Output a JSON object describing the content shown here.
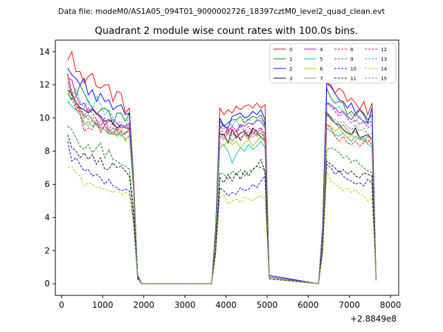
{
  "figure": {
    "suptitle": "Data file: modeM0/AS1A05_094T01_9000002726_18397cztM0_level2_quad_clean.evt"
  },
  "chart_data": {
    "type": "line",
    "title": "Quadrant 2 module wise count rates with 100.0s bins.",
    "xlabel": "",
    "ylabel": "",
    "x_offset_label": "+2.8849e8",
    "xlim": [
      -150,
      8200
    ],
    "ylim": [
      -0.7,
      14.7
    ],
    "x_ticks": [
      0,
      1000,
      2000,
      3000,
      4000,
      5000,
      6000,
      7000,
      8000
    ],
    "y_ticks": [
      0,
      2,
      4,
      6,
      8,
      10,
      12,
      14
    ],
    "x": [
      150,
      250,
      350,
      450,
      550,
      650,
      750,
      850,
      950,
      1050,
      1150,
      1250,
      1350,
      1450,
      1550,
      1650,
      1750,
      1850,
      1950,
      3650,
      3750,
      3850,
      3950,
      4050,
      4150,
      4250,
      4350,
      4450,
      4550,
      4650,
      4750,
      4850,
      4950,
      5050,
      6250,
      6350,
      6450,
      6550,
      6650,
      6750,
      6850,
      6950,
      7050,
      7150,
      7250,
      7350,
      7450,
      7550,
      7650
    ],
    "gap_after_index": [
      18,
      33
    ],
    "gap_zero_value": 0,
    "legend": {
      "location": "top-right",
      "columns": 4
    },
    "series": [
      {
        "name": "0",
        "color": "#ff0000",
        "dash": "solid",
        "values": [
          13.5,
          14.0,
          12.8,
          12.8,
          12.1,
          12.5,
          12.7,
          11.9,
          11.8,
          12.0,
          12.0,
          11.0,
          11.6,
          11.5,
          10.3,
          10.6,
          6.5,
          0.5,
          0,
          0,
          3.5,
          10.6,
          10.2,
          10.5,
          10.3,
          10.7,
          10.5,
          10.7,
          10.8,
          10.6,
          10.9,
          10.6,
          10.8,
          0.5,
          0,
          3.5,
          12.1,
          12.0,
          11.5,
          11.8,
          11.6,
          11.0,
          11.2,
          10.9,
          10.5,
          11.0,
          10.2,
          10.9,
          0.2
        ]
      },
      {
        "name": "1",
        "color": "#008000",
        "dash": "solid",
        "values": [
          11.5,
          11.1,
          11.3,
          12.0,
          11.5,
          11.0,
          10.6,
          10.2,
          10.5,
          10.6,
          10.4,
          9.6,
          10.3,
          10.3,
          9.8,
          10.3,
          6.0,
          0.5,
          0,
          0,
          3.3,
          9.8,
          9.5,
          9.7,
          9.9,
          9.9,
          10.1,
          9.7,
          9.9,
          10.1,
          10.0,
          10.2,
          9.6,
          0.4,
          0,
          3.3,
          11.8,
          11.2,
          10.9,
          11.0,
          10.9,
          10.2,
          10.4,
          10.1,
          10.5,
          10.3,
          9.9,
          10.2,
          0.2
        ]
      },
      {
        "name": "2",
        "color": "#0000ff",
        "dash": "solid",
        "values": [
          13.0,
          12.6,
          12.4,
          12.0,
          12.4,
          11.4,
          11.7,
          11.0,
          11.5,
          11.0,
          11.1,
          10.5,
          10.7,
          10.8,
          10.2,
          10.3,
          6.2,
          0.5,
          0,
          0,
          3.4,
          10.0,
          9.5,
          9.4,
          10.1,
          10.2,
          10.3,
          10.0,
          10.1,
          10.4,
          10.2,
          10.5,
          9.9,
          0.5,
          0,
          3.4,
          12.1,
          11.9,
          11.5,
          11.1,
          11.0,
          10.6,
          10.9,
          10.3,
          10.5,
          10.2,
          9.7,
          10.6,
          0.2
        ]
      },
      {
        "name": "3",
        "color": "#000000",
        "dash": "solid",
        "values": [
          11.7,
          11.4,
          11.0,
          10.6,
          10.5,
          10.3,
          10.5,
          10.3,
          10.1,
          9.8,
          9.9,
          9.7,
          9.4,
          9.6,
          9.4,
          9.4,
          5.9,
          0.4,
          0,
          0,
          3.0,
          9.0,
          9.0,
          8.5,
          9.3,
          8.8,
          9.1,
          9.2,
          8.9,
          9.4,
          9.2,
          8.8,
          8.7,
          0.4,
          0,
          3.0,
          10.3,
          10.0,
          9.7,
          9.6,
          9.3,
          9.1,
          9.0,
          9.4,
          8.8,
          8.9,
          9.0,
          8.7,
          0.2
        ]
      },
      {
        "name": "4",
        "color": "#bf00bf",
        "dash": "solid",
        "values": [
          12.4,
          12.3,
          11.4,
          10.8,
          10.9,
          10.4,
          10.6,
          10.3,
          10.0,
          9.6,
          9.8,
          9.9,
          9.7,
          9.4,
          9.5,
          9.7,
          6.0,
          0.4,
          0,
          0,
          3.1,
          9.4,
          9.6,
          9.2,
          9.5,
          9.2,
          9.6,
          9.5,
          9.7,
          9.6,
          9.9,
          9.8,
          9.4,
          0.4,
          0,
          3.1,
          10.9,
          10.8,
          10.6,
          10.3,
          10.4,
          10.1,
          9.9,
          10.3,
          10.0,
          9.8,
          9.7,
          9.8,
          0.2
        ]
      },
      {
        "name": "5",
        "color": "#00bfbf",
        "dash": "solid",
        "values": [
          11.0,
          10.7,
          10.5,
          10.2,
          9.6,
          9.8,
          9.5,
          9.7,
          9.4,
          9.3,
          9.0,
          9.2,
          8.9,
          9.1,
          8.7,
          8.9,
          5.6,
          0.4,
          0,
          0,
          2.8,
          8.2,
          8.4,
          8.0,
          7.3,
          7.8,
          8.2,
          8.0,
          8.4,
          8.1,
          8.3,
          8.6,
          8.2,
          0.4,
          0,
          2.8,
          9.4,
          9.2,
          9.0,
          8.9,
          9.1,
          8.8,
          8.6,
          8.9,
          8.7,
          8.8,
          8.4,
          8.3,
          0.2
        ]
      },
      {
        "name": "6",
        "color": "#bfbf00",
        "dash": "solid",
        "values": [
          11.4,
          11.6,
          10.6,
          10.2,
          9.8,
          9.5,
          9.9,
          9.5,
          9.3,
          9.3,
          9.1,
          9.0,
          9.0,
          9.2,
          8.6,
          9.0,
          5.7,
          0.4,
          0,
          0,
          2.9,
          8.5,
          8.3,
          8.7,
          8.4,
          8.6,
          8.2,
          8.5,
          8.7,
          8.3,
          8.6,
          8.9,
          8.5,
          0.4,
          0,
          2.9,
          9.6,
          9.5,
          9.2,
          9.4,
          9.1,
          8.8,
          9.0,
          8.7,
          8.9,
          8.6,
          8.5,
          8.8,
          0.2
        ]
      },
      {
        "name": "7",
        "color": "#808080",
        "dash": "solid",
        "values": [
          12.2,
          11.5,
          11.0,
          10.5,
          10.0,
          10.2,
          9.8,
          9.6,
          9.4,
          9.5,
          9.1,
          9.4,
          9.2,
          8.9,
          9.1,
          9.3,
          5.8,
          0.4,
          0,
          0,
          3.0,
          8.9,
          8.7,
          9.1,
          8.6,
          8.9,
          8.8,
          9.0,
          8.7,
          9.2,
          8.9,
          9.1,
          8.8,
          0.4,
          0,
          3.0,
          10.2,
          9.9,
          9.7,
          9.4,
          9.6,
          9.3,
          9.0,
          9.2,
          8.8,
          8.6,
          8.9,
          8.7,
          0.2
        ]
      },
      {
        "name": "8",
        "color": "#ff0000",
        "dash": "dashed",
        "values": [
          12.7,
          11.6,
          10.8,
          10.3,
          9.2,
          9.4,
          9.3,
          9.9,
          9.1,
          9.6,
          9.3,
          9.0,
          9.4,
          9.2,
          9.0,
          9.5,
          5.8,
          0.4,
          0,
          0,
          3.0,
          9.2,
          8.9,
          9.3,
          9.0,
          9.2,
          8.6,
          9.1,
          8.8,
          9.3,
          9.0,
          9.4,
          8.5,
          0.4,
          0,
          3.0,
          9.6,
          9.4,
          8.9,
          8.6,
          8.9,
          8.5,
          8.4,
          8.6,
          8.3,
          8.5,
          8.7,
          8.4,
          0.2
        ]
      },
      {
        "name": "9",
        "color": "#008000",
        "dash": "dashed",
        "values": [
          9.5,
          9.3,
          8.8,
          8.3,
          8.1,
          8.4,
          7.9,
          8.2,
          8.5,
          7.6,
          8.1,
          7.5,
          7.4,
          7.2,
          7.1,
          6.9,
          4.5,
          0.3,
          0,
          0,
          2.2,
          6.7,
          6.6,
          6.3,
          6.8,
          6.6,
          6.9,
          6.5,
          6.8,
          6.9,
          7.1,
          7.0,
          6.9,
          0.3,
          0,
          2.3,
          8.1,
          8.2,
          8.1,
          7.9,
          7.6,
          7.7,
          7.3,
          7.5,
          7.2,
          7.0,
          6.8,
          6.7,
          0.2
        ]
      },
      {
        "name": "10",
        "color": "#0000ff",
        "dash": "dashed",
        "values": [
          8.6,
          7.4,
          7.6,
          7.2,
          6.8,
          6.9,
          6.5,
          6.6,
          6.4,
          6.0,
          6.3,
          5.9,
          5.8,
          5.6,
          5.7,
          5.6,
          3.8,
          0.3,
          0,
          0,
          1.9,
          5.8,
          5.6,
          5.3,
          5.5,
          5.4,
          5.8,
          5.6,
          5.7,
          6.0,
          5.8,
          6.2,
          6.5,
          0.3,
          0,
          2.0,
          7.2,
          7.0,
          6.6,
          6.8,
          6.5,
          6.3,
          6.2,
          6.0,
          6.1,
          5.9,
          6.3,
          6.1,
          0.2
        ]
      },
      {
        "name": "11",
        "color": "#000000",
        "dash": "dashed",
        "values": [
          9.0,
          8.2,
          8.0,
          7.6,
          7.9,
          7.5,
          7.8,
          7.2,
          7.6,
          6.9,
          6.9,
          7.3,
          7.0,
          7.1,
          6.8,
          6.5,
          4.2,
          0.3,
          0,
          0,
          2.1,
          6.4,
          6.1,
          6.6,
          6.2,
          6.7,
          6.3,
          6.8,
          6.5,
          6.9,
          7.1,
          7.5,
          6.7,
          0.3,
          0,
          2.2,
          7.4,
          7.2,
          7.0,
          6.7,
          6.9,
          6.6,
          6.8,
          6.5,
          6.4,
          6.7,
          6.6,
          6.5,
          0.2
        ]
      },
      {
        "name": "12",
        "color": "#bf00bf",
        "dash": "dashed",
        "values": [
          12.6,
          11.2,
          10.5,
          10.7,
          10.1,
          10.6,
          10.3,
          9.9,
          9.5,
          10.0,
          9.3,
          9.7,
          9.2,
          9.6,
          9.4,
          9.6,
          6.1,
          0.4,
          0,
          0,
          3.1,
          9.5,
          9.0,
          9.4,
          9.3,
          8.9,
          9.6,
          9.2,
          9.5,
          9.0,
          9.3,
          9.4,
          9.0,
          0.4,
          0,
          3.1,
          10.9,
          10.7,
          10.4,
          10.1,
          10.3,
          10.0,
          9.7,
          9.9,
          9.6,
          9.8,
          9.4,
          9.6,
          0.2
        ]
      },
      {
        "name": "13",
        "color": "#00bfbf",
        "dash": "dashed",
        "values": [
          10.9,
          11.2,
          11.8,
          11.0,
          10.6,
          11.1,
          10.5,
          11.3,
          10.8,
          10.2,
          10.5,
          10.0,
          9.6,
          9.8,
          9.5,
          10.1,
          6.2,
          0.4,
          0,
          0,
          3.2,
          9.6,
          9.3,
          9.8,
          9.5,
          9.9,
          9.4,
          9.7,
          10.0,
          9.6,
          9.8,
          10.0,
          9.5,
          0.4,
          0,
          3.2,
          11.0,
          10.8,
          10.5,
          10.7,
          10.3,
          10.0,
          10.2,
          9.8,
          10.1,
          9.7,
          9.6,
          9.9,
          0.2
        ]
      },
      {
        "name": "14",
        "color": "#bfbf00",
        "dash": "dashed",
        "values": [
          7.0,
          7.1,
          6.7,
          6.5,
          5.9,
          6.1,
          6.0,
          5.8,
          5.8,
          5.7,
          5.6,
          5.5,
          5.7,
          5.4,
          5.5,
          5.4,
          3.6,
          0.3,
          0,
          0,
          1.8,
          5.2,
          5.4,
          4.8,
          5.0,
          5.1,
          4.9,
          5.2,
          5.1,
          5.0,
          5.2,
          5.3,
          5.1,
          0.3,
          0,
          1.8,
          6.8,
          6.2,
          6.0,
          5.9,
          5.6,
          5.8,
          5.5,
          5.7,
          5.4,
          5.3,
          5.0,
          5.2,
          0.2
        ]
      },
      {
        "name": "15",
        "color": "#808080",
        "dash": "dashed",
        "values": [
          11.9,
          11.3,
          10.9,
          10.4,
          10.2,
          9.9,
          10.1,
          9.6,
          9.8,
          9.5,
          9.2,
          9.4,
          9.0,
          9.3,
          9.1,
          9.2,
          5.9,
          0.4,
          0,
          0,
          3.0,
          9.1,
          8.8,
          9.2,
          8.9,
          9.3,
          8.7,
          9.0,
          9.2,
          8.8,
          9.1,
          9.3,
          8.9,
          0.4,
          0,
          3.0,
          10.4,
          10.1,
          9.9,
          9.7,
          9.8,
          9.5,
          9.3,
          9.6,
          9.2,
          9.4,
          9.0,
          9.1,
          0.2
        ]
      }
    ]
  }
}
